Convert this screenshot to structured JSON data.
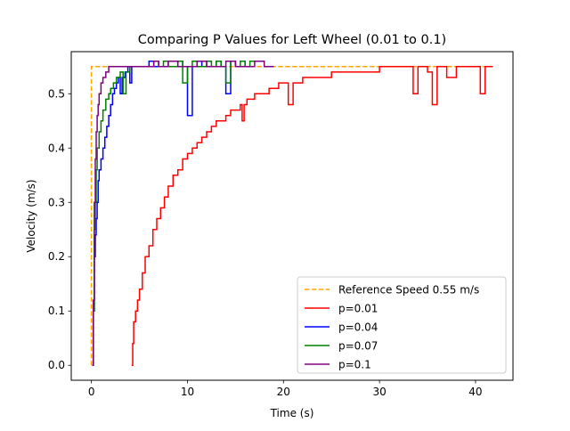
{
  "chart_data": {
    "type": "line",
    "title": "Comparing P Values for Left Wheel (0.01 to 0.1)",
    "xlabel": "Time (s)",
    "ylabel": "Velocity (m/s)",
    "xlim": [
      -2.1,
      43.9
    ],
    "ylim": [
      -0.0275,
      0.5775
    ],
    "xticks": [
      0,
      10,
      20,
      30,
      40
    ],
    "yticks": [
      0.0,
      0.1,
      0.2,
      0.3,
      0.4,
      0.5
    ],
    "xtick_labels": [
      "0",
      "10",
      "20",
      "30",
      "40"
    ],
    "ytick_labels": [
      "0.0",
      "0.1",
      "0.2",
      "0.3",
      "0.4",
      "0.5"
    ],
    "grid": false,
    "legend_position": "lower-right",
    "series": [
      {
        "name": "Reference Speed 0.55 m/s",
        "color": "#ffa500",
        "style": "dashed",
        "x": [
          0.0,
          0.0,
          41.8
        ],
        "y": [
          0.0,
          0.55,
          0.55
        ]
      },
      {
        "name": "p=0.01",
        "color": "#ff0000",
        "style": "solid",
        "x": [
          4.2,
          4.3,
          4.4,
          4.6,
          4.8,
          5.0,
          5.3,
          5.6,
          6.0,
          6.4,
          6.8,
          7.2,
          7.6,
          8.0,
          8.5,
          9.0,
          9.5,
          10.0,
          10.5,
          11.0,
          11.5,
          12.0,
          12.5,
          13.0,
          13.5,
          14.0,
          14.5,
          15.0,
          15.5,
          15.7,
          15.9,
          16.2,
          16.5,
          17.0,
          17.5,
          18.0,
          18.5,
          19.0,
          19.5,
          20.0,
          20.5,
          21.0,
          21.5,
          22.0,
          22.5,
          23.0,
          23.5,
          24.0,
          25.0,
          26.0,
          27.0,
          27.5,
          28.0,
          28.5,
          29.0,
          29.5,
          30.0,
          31.0,
          32.0,
          33.0,
          33.5,
          34.0,
          34.5,
          35.0,
          35.5,
          36.0,
          36.5,
          37.0,
          38.0,
          39.0,
          40.0,
          40.5,
          41.0,
          41.8
        ],
        "y": [
          0.0,
          0.04,
          0.08,
          0.1,
          0.12,
          0.14,
          0.17,
          0.2,
          0.22,
          0.25,
          0.27,
          0.29,
          0.31,
          0.33,
          0.35,
          0.36,
          0.38,
          0.39,
          0.4,
          0.41,
          0.42,
          0.43,
          0.44,
          0.45,
          0.45,
          0.46,
          0.47,
          0.47,
          0.48,
          0.45,
          0.48,
          0.49,
          0.49,
          0.5,
          0.5,
          0.5,
          0.51,
          0.51,
          0.52,
          0.52,
          0.48,
          0.52,
          0.52,
          0.53,
          0.53,
          0.53,
          0.53,
          0.53,
          0.54,
          0.54,
          0.54,
          0.54,
          0.54,
          0.54,
          0.54,
          0.54,
          0.55,
          0.55,
          0.55,
          0.55,
          0.5,
          0.55,
          0.55,
          0.54,
          0.48,
          0.55,
          0.55,
          0.53,
          0.55,
          0.55,
          0.55,
          0.5,
          0.55,
          0.55
        ]
      },
      {
        "name": "p=0.04",
        "color": "#0000ff",
        "style": "solid",
        "x": [
          0.1,
          0.2,
          0.3,
          0.4,
          0.5,
          0.6,
          0.7,
          0.8,
          1.0,
          1.2,
          1.4,
          1.6,
          1.8,
          2.0,
          2.2,
          2.4,
          2.6,
          2.8,
          3.0,
          3.2,
          3.5,
          3.8,
          4.0,
          4.2,
          4.5,
          4.8,
          5.0,
          5.3,
          5.6,
          6.0,
          6.5,
          7.0,
          7.5,
          8.0,
          8.5,
          9.0,
          9.5,
          10.0,
          10.5,
          11.0,
          11.5,
          12.0,
          12.5,
          13.0,
          13.5,
          14.0,
          14.5,
          15.0,
          15.5,
          16.0
        ],
        "y": [
          0.0,
          0.1,
          0.2,
          0.24,
          0.27,
          0.3,
          0.34,
          0.36,
          0.38,
          0.4,
          0.42,
          0.44,
          0.46,
          0.48,
          0.5,
          0.51,
          0.52,
          0.53,
          0.5,
          0.53,
          0.54,
          0.55,
          0.52,
          0.55,
          0.55,
          0.55,
          0.55,
          0.55,
          0.55,
          0.56,
          0.55,
          0.55,
          0.55,
          0.55,
          0.55,
          0.56,
          0.55,
          0.46,
          0.55,
          0.56,
          0.55,
          0.55,
          0.55,
          0.56,
          0.55,
          0.5,
          0.56,
          0.55,
          0.55,
          0.56
        ]
      },
      {
        "name": "p=0.07",
        "color": "#008000",
        "style": "solid",
        "x": [
          0.1,
          0.2,
          0.3,
          0.4,
          0.5,
          0.6,
          0.8,
          1.0,
          1.2,
          1.5,
          1.8,
          2.0,
          2.3,
          2.6,
          3.0,
          3.3,
          3.6,
          4.0,
          4.5,
          5.0,
          5.5,
          6.0,
          6.5,
          7.0,
          7.5,
          8.0,
          8.5,
          9.0,
          9.5,
          10.0,
          10.5,
          11.0,
          11.5,
          12.0,
          12.5,
          13.0,
          13.5,
          14.0,
          14.5,
          15.0,
          15.5,
          16.0,
          16.5,
          17.0
        ],
        "y": [
          0.0,
          0.1,
          0.25,
          0.3,
          0.36,
          0.4,
          0.43,
          0.45,
          0.47,
          0.49,
          0.5,
          0.51,
          0.52,
          0.53,
          0.54,
          0.5,
          0.54,
          0.55,
          0.55,
          0.55,
          0.55,
          0.55,
          0.56,
          0.55,
          0.56,
          0.55,
          0.55,
          0.56,
          0.52,
          0.55,
          0.56,
          0.55,
          0.55,
          0.56,
          0.55,
          0.56,
          0.55,
          0.52,
          0.56,
          0.55,
          0.56,
          0.55,
          0.56,
          0.56
        ]
      },
      {
        "name": "p=0.1",
        "color": "#800080",
        "style": "solid",
        "x": [
          0.1,
          0.2,
          0.3,
          0.4,
          0.5,
          0.6,
          0.7,
          0.8,
          1.0,
          1.2,
          1.5,
          1.8,
          2.0,
          2.5,
          3.0,
          4.0,
          5.0,
          6.0,
          6.5,
          7.0,
          8.0,
          9.0,
          10.0,
          11.0,
          12.0,
          13.0,
          14.0,
          15.0,
          16.0,
          17.0,
          18.0,
          19.0
        ],
        "y": [
          0.0,
          0.12,
          0.3,
          0.38,
          0.43,
          0.46,
          0.48,
          0.5,
          0.52,
          0.53,
          0.54,
          0.55,
          0.55,
          0.55,
          0.55,
          0.55,
          0.55,
          0.55,
          0.56,
          0.55,
          0.56,
          0.55,
          0.55,
          0.56,
          0.55,
          0.55,
          0.56,
          0.55,
          0.55,
          0.56,
          0.55,
          0.55
        ]
      }
    ]
  }
}
